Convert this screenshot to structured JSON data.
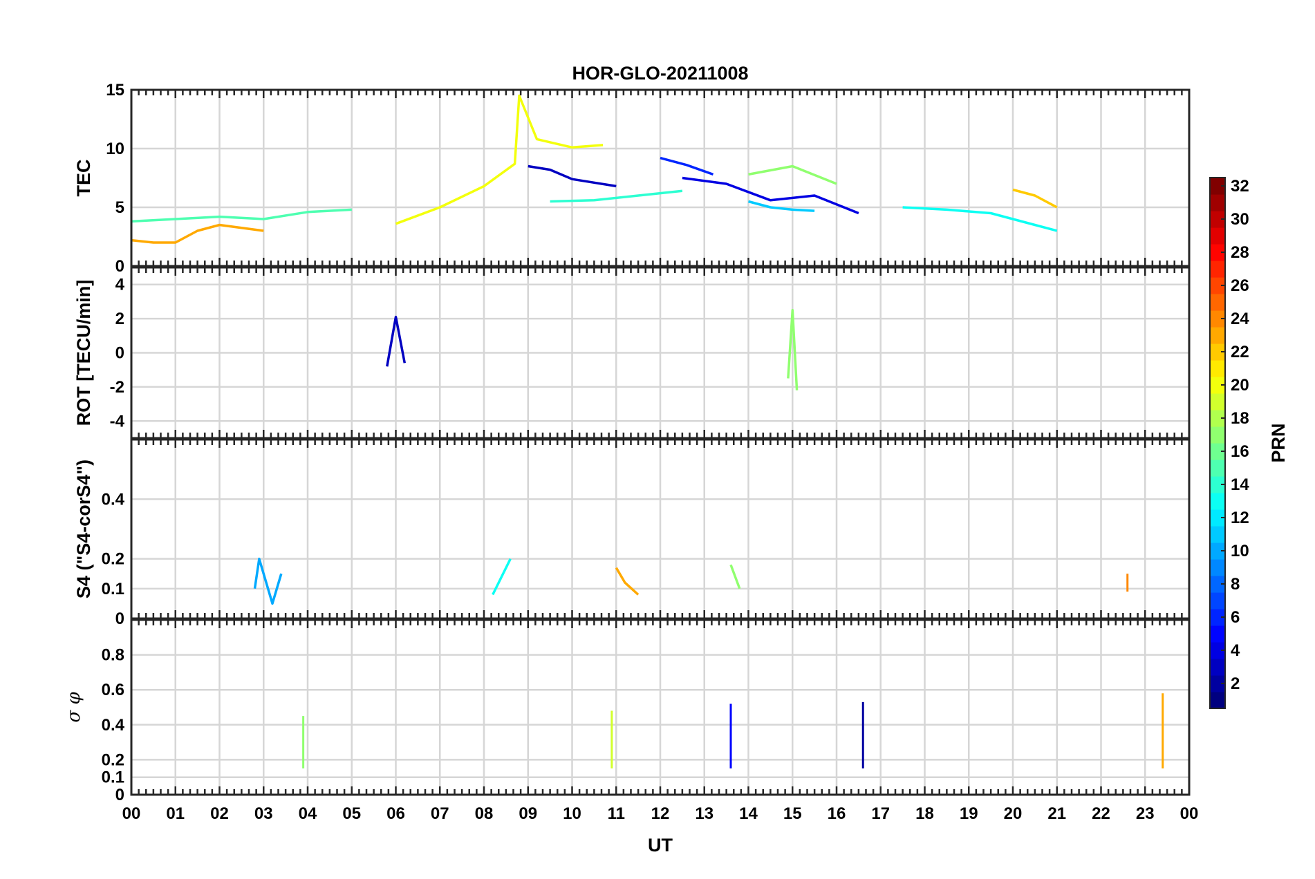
{
  "chart_data": {
    "type": "line",
    "title": "HOR-GLO-20211008",
    "xlabel": "UT",
    "x_ticks": [
      "00",
      "01",
      "02",
      "03",
      "04",
      "05",
      "06",
      "07",
      "08",
      "09",
      "10",
      "11",
      "12",
      "13",
      "14",
      "15",
      "16",
      "17",
      "18",
      "19",
      "20",
      "21",
      "22",
      "23",
      "00"
    ],
    "xlim": [
      0,
      24
    ],
    "grid": true,
    "colorbar": {
      "label": "PRN",
      "range": [
        1,
        32
      ],
      "ticks": [
        "2",
        "4",
        "6",
        "8",
        "10",
        "12",
        "14",
        "16",
        "18",
        "20",
        "22",
        "24",
        "26",
        "28",
        "30",
        "32"
      ],
      "colormap": "jet"
    },
    "panels": [
      {
        "name": "tec",
        "ylabel": "TEC",
        "ylim": [
          0,
          15
        ],
        "yticks": [
          "0",
          "5",
          "10",
          "15"
        ],
        "series": [
          {
            "prn": 3,
            "x": [
              9.0,
              9.5,
              10.0,
              10.5,
              11.0
            ],
            "y": [
              8.5,
              8.2,
              7.4,
              7.1,
              6.8
            ]
          },
          {
            "prn": 4,
            "x": [
              12.5,
              13.5,
              14.5,
              15.5,
              16.5
            ],
            "y": [
              7.5,
              7.0,
              5.6,
              6.0,
              4.5
            ]
          },
          {
            "prn": 6,
            "x": [
              12.0,
              12.6,
              13.2
            ],
            "y": [
              9.2,
              8.6,
              7.8
            ]
          },
          {
            "prn": 11,
            "x": [
              14.0,
              14.5,
              15.0,
              15.5
            ],
            "y": [
              5.5,
              5.0,
              4.8,
              4.7
            ]
          },
          {
            "prn": 13,
            "x": [
              17.5,
              18.5,
              19.5,
              20.5,
              21.0
            ],
            "y": [
              5.0,
              4.8,
              4.5,
              3.5,
              3.0
            ]
          },
          {
            "prn": 14,
            "x": [
              9.5,
              10.5,
              11.5,
              12.5
            ],
            "y": [
              5.5,
              5.6,
              6.0,
              6.4
            ]
          },
          {
            "prn": 15,
            "x": [
              0.0,
              1.0,
              2.0,
              3.0,
              4.0,
              5.0
            ],
            "y": [
              3.8,
              4.0,
              4.2,
              4.0,
              4.6,
              4.8
            ]
          },
          {
            "prn": 17,
            "x": [
              14.0,
              15.0,
              16.0
            ],
            "y": [
              7.8,
              8.5,
              7.0
            ]
          },
          {
            "prn": 20,
            "x": [
              6.0,
              7.0,
              8.0,
              8.7,
              8.8,
              9.2,
              10.0,
              10.7
            ],
            "y": [
              3.6,
              5.0,
              6.8,
              8.7,
              14.5,
              10.8,
              10.1,
              10.3
            ]
          },
          {
            "prn": 22,
            "x": [
              20.0,
              20.5,
              21.0
            ],
            "y": [
              6.5,
              6.0,
              5.0
            ]
          },
          {
            "prn": 23,
            "x": [
              0.0,
              0.5,
              1.0,
              1.5,
              2.0,
              3.0
            ],
            "y": [
              2.2,
              2.0,
              2.0,
              3.0,
              3.5,
              3.0
            ]
          }
        ]
      },
      {
        "name": "rot",
        "ylabel": "ROT [TECU/min]",
        "ylim": [
          -5,
          5
        ],
        "yticks": [
          "-4",
          "-2",
          "0",
          "2",
          "4"
        ],
        "series": [
          {
            "prn": 3,
            "x": [
              5.8,
              6.0,
              6.2
            ],
            "y": [
              -0.8,
              2.1,
              -0.6
            ]
          },
          {
            "prn": 17,
            "x": [
              14.9,
              15.0,
              15.1
            ],
            "y": [
              -1.5,
              2.5,
              -2.2
            ]
          }
        ]
      },
      {
        "name": "s4",
        "ylabel": "S4 (\"S4-corS4\")",
        "ylim": [
          0,
          0.6
        ],
        "yticks": [
          "0",
          "0.1",
          "0.2",
          "0.4"
        ],
        "series": [
          {
            "prn": 10,
            "x": [
              2.8,
              2.9,
              3.2,
              3.4
            ],
            "y": [
              0.1,
              0.2,
              0.05,
              0.15
            ]
          },
          {
            "prn": 13,
            "x": [
              8.2,
              8.6
            ],
            "y": [
              0.08,
              0.2
            ]
          },
          {
            "prn": 23,
            "x": [
              11.0,
              11.2,
              11.5
            ],
            "y": [
              0.17,
              0.12,
              0.08
            ]
          },
          {
            "prn": 17,
            "x": [
              13.6,
              13.8
            ],
            "y": [
              0.18,
              0.1
            ]
          },
          {
            "prn": 24,
            "x": [
              22.6
            ],
            "y": [
              0.15
            ]
          }
        ]
      },
      {
        "name": "sigma_phi",
        "ylabel": "σ φ",
        "ylim": [
          0,
          1
        ],
        "yticks": [
          "0",
          "0.1",
          "0.2",
          "0.4",
          "0.6",
          "0.8"
        ],
        "series": [
          {
            "prn": 19,
            "x": [
              10.9
            ],
            "y": [
              0.48
            ]
          },
          {
            "prn": 23,
            "x": [
              23.4
            ],
            "y": [
              0.58
            ]
          },
          {
            "prn": 17,
            "x": [
              3.9
            ],
            "y": [
              0.45
            ]
          },
          {
            "prn": 5,
            "x": [
              13.6
            ],
            "y": [
              0.52
            ]
          },
          {
            "prn": 2,
            "x": [
              16.6
            ],
            "y": [
              0.53
            ]
          }
        ]
      }
    ]
  }
}
